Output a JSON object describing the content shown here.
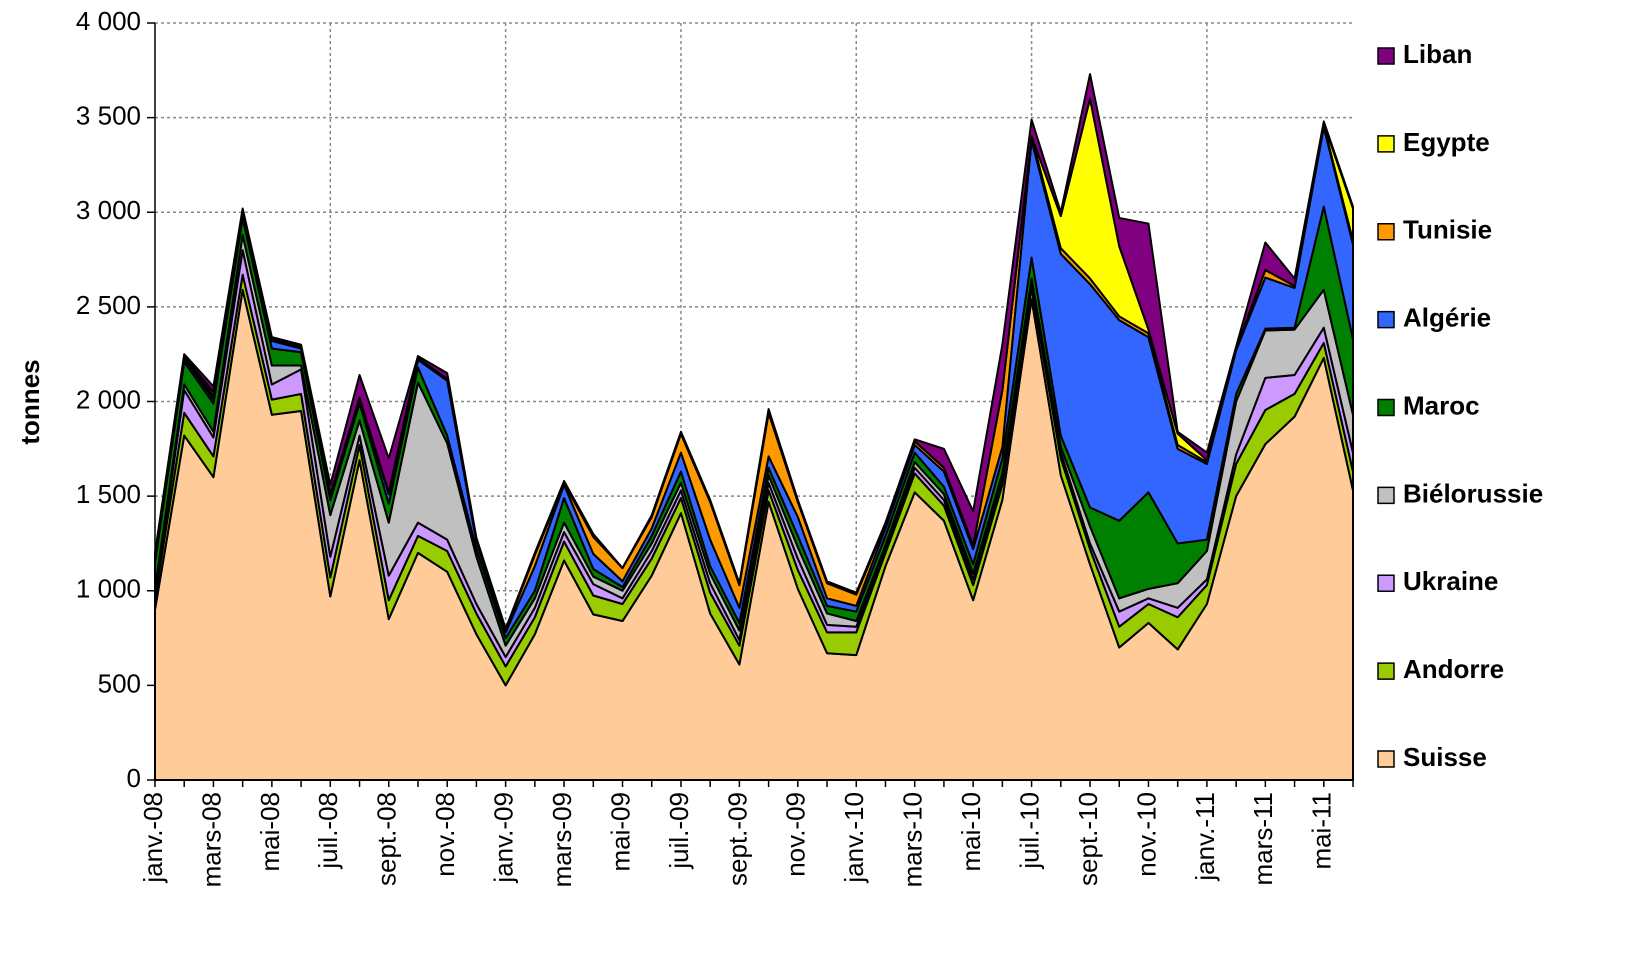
{
  "chart_data": {
    "type": "stacked_area",
    "y_label": "tonnes",
    "categories": [
      "janv.-08",
      null,
      "mars-08",
      null,
      "mai-08",
      null,
      "juil.-08",
      null,
      "sept.-08",
      null,
      "nov.-08",
      null,
      "janv.-09",
      null,
      "mars-09",
      null,
      "mai-09",
      null,
      "juil.-09",
      null,
      "sept.-09",
      null,
      "nov.-09",
      null,
      "janv.-10",
      null,
      "mars-10",
      null,
      "mai-10",
      null,
      "juil.-10",
      null,
      "sept.-10",
      null,
      "nov.-10",
      null,
      "janv.-11",
      null,
      "mars-11",
      null,
      "mai-11",
      null
    ],
    "series": [
      {
        "name": "Suisse",
        "color": "#FFCC99",
        "values": [
          900,
          1820,
          1600,
          2590,
          1930,
          1950,
          970,
          1690,
          850,
          1200,
          1100,
          770,
          500,
          770,
          1160,
          875,
          840,
          1080,
          1410,
          880,
          610,
          1470,
          1010,
          670,
          660,
          1130,
          1520,
          1370,
          950,
          1480,
          2540,
          1610,
          1140,
          700,
          830,
          690,
          930,
          1500,
          1775,
          1920,
          2230,
          1530
        ]
      },
      {
        "name": "Andorre",
        "color": "#99CC00",
        "values": [
          60,
          120,
          110,
          80,
          80,
          90,
          100,
          80,
          100,
          90,
          110,
          110,
          100,
          90,
          100,
          100,
          90,
          90,
          80,
          110,
          100,
          60,
          100,
          110,
          120,
          70,
          100,
          80,
          80,
          80,
          60,
          90,
          80,
          110,
          100,
          170,
          100,
          170,
          180,
          120,
          80,
          100
        ]
      },
      {
        "name": "Ukraine",
        "color": "#CC99FF",
        "values": [
          20,
          120,
          100,
          130,
          80,
          130,
          110,
          50,
          130,
          70,
          60,
          50,
          50,
          50,
          50,
          60,
          30,
          40,
          40,
          50,
          30,
          40,
          60,
          40,
          30,
          20,
          30,
          30,
          30,
          30,
          20,
          30,
          30,
          80,
          30,
          50,
          30,
          50,
          170,
          100,
          80,
          100
        ]
      },
      {
        "name": "Biélorussie",
        "color": "#C0C0C0",
        "values": [
          30,
          30,
          30,
          80,
          100,
          20,
          220,
          80,
          280,
          740,
          510,
          250,
          60,
          50,
          50,
          40,
          40,
          40,
          40,
          50,
          50,
          40,
          60,
          60,
          30,
          20,
          30,
          30,
          30,
          30,
          30,
          30,
          90,
          70,
          50,
          130,
          150,
          280,
          250,
          240,
          200,
          200
        ]
      },
      {
        "name": "Maroc",
        "color": "#008000",
        "values": [
          140,
          120,
          150,
          90,
          90,
          70,
          80,
          90,
          100,
          80,
          40,
          40,
          40,
          40,
          130,
          40,
          20,
          40,
          60,
          40,
          40,
          40,
          60,
          40,
          50,
          50,
          50,
          40,
          50,
          80,
          110,
          60,
          100,
          410,
          510,
          210,
          60,
          40,
          10,
          10,
          440,
          400
        ]
      },
      {
        "name": "Algérie",
        "color": "#3366FF",
        "values": [
          30,
          20,
          20,
          20,
          40,
          20,
          20,
          20,
          50,
          40,
          290,
          40,
          30,
          130,
          70,
          80,
          30,
          40,
          100,
          140,
          80,
          60,
          100,
          40,
          30,
          40,
          40,
          80,
          80,
          60,
          620,
          960,
          1180,
          1060,
          820,
          500,
          400,
          230,
          270,
          210,
          420,
          500
        ]
      },
      {
        "name": "Tunisie",
        "color": "#FF9900",
        "values": [
          10,
          10,
          20,
          10,
          10,
          10,
          10,
          10,
          10,
          10,
          10,
          10,
          10,
          60,
          10,
          90,
          70,
          60,
          100,
          200,
          120,
          230,
          80,
          80,
          60,
          20,
          20,
          20,
          20,
          300,
          20,
          30,
          30,
          20,
          20,
          20,
          10,
          10,
          40,
          10,
          10,
          20
        ]
      },
      {
        "name": "Egypte",
        "color": "#FFFF00",
        "values": [
          0,
          0,
          20,
          0,
          0,
          0,
          0,
          0,
          0,
          0,
          0,
          0,
          0,
          0,
          0,
          0,
          0,
          0,
          0,
          0,
          0,
          0,
          0,
          0,
          0,
          0,
          0,
          0,
          0,
          0,
          0,
          170,
          950,
          370,
          20,
          60,
          10,
          0,
          0,
          0,
          10,
          170
        ]
      },
      {
        "name": "Liban",
        "color": "#800080",
        "values": [
          10,
          10,
          30,
          20,
          10,
          10,
          50,
          120,
          180,
          10,
          30,
          10,
          10,
          10,
          10,
          15,
          0,
          10,
          10,
          10,
          10,
          20,
          10,
          10,
          10,
          10,
          10,
          100,
          180,
          240,
          90,
          20,
          130,
          150,
          560,
          10,
          40,
          10,
          145,
          40,
          10,
          10
        ]
      }
    ],
    "ylim": [
      0,
      4000
    ],
    "yticks": [
      0,
      500,
      {
        "value": 1000,
        "label": "1 000"
      },
      {
        "value": 1500,
        "label": "1 500"
      },
      {
        "value": 2000,
        "label": "2 000"
      },
      {
        "value": 2500,
        "label": "2 500"
      },
      {
        "value": 3000,
        "label": "3 000"
      },
      {
        "value": 3500,
        "label": "3 500"
      },
      {
        "value": 4000,
        "label": "4 000"
      }
    ],
    "grid": true,
    "legend": "right"
  }
}
